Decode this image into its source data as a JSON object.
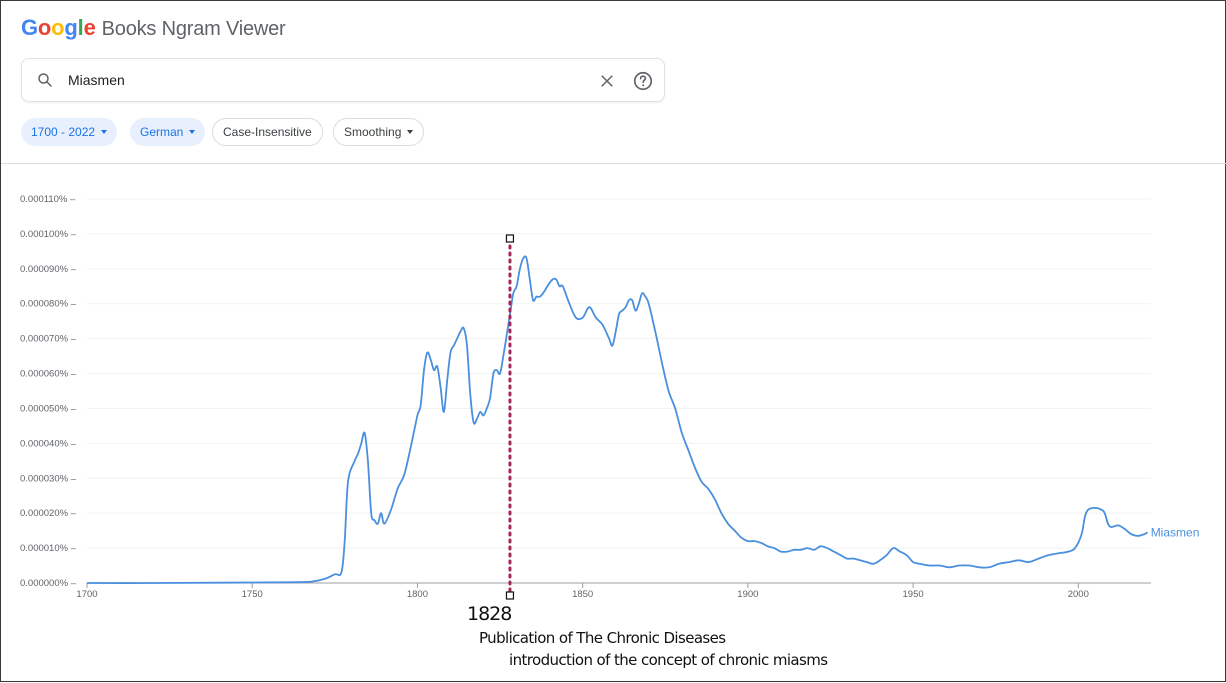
{
  "app": {
    "logo_letters": [
      "G",
      "o",
      "o",
      "g",
      "l",
      "e"
    ],
    "title": "Books Ngram Viewer"
  },
  "search": {
    "value": "Miasmen",
    "icon": "search-icon",
    "clear_icon": "close-icon",
    "help_icon": "help-icon"
  },
  "filters": {
    "year_range": "1700 - 2022",
    "corpus": "German",
    "case": "Case-Insensitive",
    "smoothing": "Smoothing"
  },
  "colors": {
    "series": "#4a8fde",
    "marker_line": "#a0285a",
    "active_chip_bg": "#e8f0fe",
    "active_chip_text": "#1a73e8"
  },
  "chart_data": {
    "type": "line",
    "xlim": [
      1700,
      2022
    ],
    "ylim": [
      0,
      1.1e-06
    ],
    "x_ticks": [
      {
        "value": 1700,
        "label": "1700"
      },
      {
        "value": 1750,
        "label": "1750"
      },
      {
        "value": 1800,
        "label": "1800"
      },
      {
        "value": 1850,
        "label": "1850"
      },
      {
        "value": 1900,
        "label": "1900"
      },
      {
        "value": 1950,
        "label": "1950"
      },
      {
        "value": 2000,
        "label": "2000"
      }
    ],
    "y_ticks": [
      {
        "value": 0,
        "label": "0.000000%"
      },
      {
        "value": 1e-07,
        "label": "0.000010%"
      },
      {
        "value": 2e-07,
        "label": "0.000020%"
      },
      {
        "value": 3e-07,
        "label": "0.000030%"
      },
      {
        "value": 4e-07,
        "label": "0.000040%"
      },
      {
        "value": 5e-07,
        "label": "0.000050%"
      },
      {
        "value": 6e-07,
        "label": "0.000060%"
      },
      {
        "value": 7e-07,
        "label": "0.000070%"
      },
      {
        "value": 8e-07,
        "label": "0.000080%"
      },
      {
        "value": 9e-07,
        "label": "0.000090%"
      },
      {
        "value": 1e-06,
        "label": "0.000100%"
      },
      {
        "value": 1.1e-06,
        "label": "0.000110%"
      }
    ],
    "series": [
      {
        "name": "Miasmen",
        "points": [
          [
            1700,
            0
          ],
          [
            1720,
            0
          ],
          [
            1740,
            1e-09
          ],
          [
            1760,
            2e-09
          ],
          [
            1768,
            4e-09
          ],
          [
            1772,
            1.2e-08
          ],
          [
            1775,
            2.5e-08
          ],
          [
            1777,
            3e-08
          ],
          [
            1778,
            1.2e-07
          ],
          [
            1779,
            2.9e-07
          ],
          [
            1781,
            3.5e-07
          ],
          [
            1782,
            3.7e-07
          ],
          [
            1783,
            4e-07
          ],
          [
            1784,
            4.3e-07
          ],
          [
            1785,
            3.5e-07
          ],
          [
            1786,
            2e-07
          ],
          [
            1787,
            1.8e-07
          ],
          [
            1788,
            1.7e-07
          ],
          [
            1789,
            2e-07
          ],
          [
            1790,
            1.7e-07
          ],
          [
            1792,
            2.1e-07
          ],
          [
            1794,
            2.7e-07
          ],
          [
            1796,
            3.1e-07
          ],
          [
            1798,
            3.9e-07
          ],
          [
            1800,
            4.8e-07
          ],
          [
            1801,
            5.1e-07
          ],
          [
            1802,
            6.1e-07
          ],
          [
            1803,
            6.6e-07
          ],
          [
            1804,
            6.4e-07
          ],
          [
            1805,
            6.1e-07
          ],
          [
            1806,
            6.2e-07
          ],
          [
            1807,
            5.6e-07
          ],
          [
            1808,
            4.9e-07
          ],
          [
            1809,
            5.8e-07
          ],
          [
            1810,
            6.6e-07
          ],
          [
            1811,
            6.8e-07
          ],
          [
            1812,
            7e-07
          ],
          [
            1813,
            7.2e-07
          ],
          [
            1814,
            7.3e-07
          ],
          [
            1815,
            6.8e-07
          ],
          [
            1816,
            5.4e-07
          ],
          [
            1817,
            4.6e-07
          ],
          [
            1818,
            4.7e-07
          ],
          [
            1819,
            4.9e-07
          ],
          [
            1820,
            4.8e-07
          ],
          [
            1821,
            5e-07
          ],
          [
            1822,
            5.3e-07
          ],
          [
            1823,
            6e-07
          ],
          [
            1824,
            6.1e-07
          ],
          [
            1825,
            6e-07
          ],
          [
            1826,
            6.5e-07
          ],
          [
            1827,
            7.1e-07
          ],
          [
            1828,
            7.7e-07
          ],
          [
            1829,
            8.3e-07
          ],
          [
            1830,
            8.5e-07
          ],
          [
            1831,
            9e-07
          ],
          [
            1832,
            9.3e-07
          ],
          [
            1833,
            9.3e-07
          ],
          [
            1834,
            8.7e-07
          ],
          [
            1835,
            8.1e-07
          ],
          [
            1836,
            8.2e-07
          ],
          [
            1837,
            8.2e-07
          ],
          [
            1838,
            8.3e-07
          ],
          [
            1840,
            8.6e-07
          ],
          [
            1841,
            8.7e-07
          ],
          [
            1842,
            8.7e-07
          ],
          [
            1843,
            8.5e-07
          ],
          [
            1844,
            8.5e-07
          ],
          [
            1846,
            8e-07
          ],
          [
            1848,
            7.6e-07
          ],
          [
            1850,
            7.6e-07
          ],
          [
            1852,
            7.9e-07
          ],
          [
            1854,
            7.6e-07
          ],
          [
            1856,
            7.4e-07
          ],
          [
            1858,
            7e-07
          ],
          [
            1859,
            6.8e-07
          ],
          [
            1860,
            7.2e-07
          ],
          [
            1861,
            7.7e-07
          ],
          [
            1862,
            7.8e-07
          ],
          [
            1863,
            7.9e-07
          ],
          [
            1864,
            8.1e-07
          ],
          [
            1865,
            8.1e-07
          ],
          [
            1866,
            7.8e-07
          ],
          [
            1867,
            8e-07
          ],
          [
            1868,
            8.3e-07
          ],
          [
            1869,
            8.2e-07
          ],
          [
            1870,
            8e-07
          ],
          [
            1872,
            7.2e-07
          ],
          [
            1874,
            6.3e-07
          ],
          [
            1876,
            5.5e-07
          ],
          [
            1878,
            5e-07
          ],
          [
            1880,
            4.3e-07
          ],
          [
            1882,
            3.8e-07
          ],
          [
            1884,
            3.3e-07
          ],
          [
            1886,
            2.9e-07
          ],
          [
            1888,
            2.7e-07
          ],
          [
            1890,
            2.4e-07
          ],
          [
            1892,
            2e-07
          ],
          [
            1894,
            1.7e-07
          ],
          [
            1896,
            1.5e-07
          ],
          [
            1898,
            1.3e-07
          ],
          [
            1900,
            1.2e-07
          ],
          [
            1902,
            1.2e-07
          ],
          [
            1904,
            1.15e-07
          ],
          [
            1906,
            1.05e-07
          ],
          [
            1908,
            1e-07
          ],
          [
            1910,
            9e-08
          ],
          [
            1912,
            9e-08
          ],
          [
            1914,
            9.5e-08
          ],
          [
            1916,
            9.5e-08
          ],
          [
            1918,
            1e-07
          ],
          [
            1920,
            9.5e-08
          ],
          [
            1922,
            1.05e-07
          ],
          [
            1924,
            1e-07
          ],
          [
            1926,
            9e-08
          ],
          [
            1928,
            8e-08
          ],
          [
            1930,
            7e-08
          ],
          [
            1932,
            7e-08
          ],
          [
            1934,
            6.5e-08
          ],
          [
            1936,
            6e-08
          ],
          [
            1938,
            5.5e-08
          ],
          [
            1940,
            6.5e-08
          ],
          [
            1942,
            8e-08
          ],
          [
            1944,
            1e-07
          ],
          [
            1946,
            9e-08
          ],
          [
            1948,
            8e-08
          ],
          [
            1950,
            6e-08
          ],
          [
            1952,
            5.5e-08
          ],
          [
            1955,
            5e-08
          ],
          [
            1958,
            5e-08
          ],
          [
            1961,
            4.5e-08
          ],
          [
            1964,
            5e-08
          ],
          [
            1967,
            5e-08
          ],
          [
            1970,
            4.5e-08
          ],
          [
            1973,
            4.5e-08
          ],
          [
            1976,
            5.5e-08
          ],
          [
            1979,
            6e-08
          ],
          [
            1982,
            6.5e-08
          ],
          [
            1985,
            6e-08
          ],
          [
            1988,
            7e-08
          ],
          [
            1991,
            8e-08
          ],
          [
            1994,
            8.5e-08
          ],
          [
            1997,
            9e-08
          ],
          [
            1999,
            1e-07
          ],
          [
            2001,
            1.4e-07
          ],
          [
            2002,
            1.9e-07
          ],
          [
            2003,
            2.1e-07
          ],
          [
            2005,
            2.15e-07
          ],
          [
            2007,
            2.1e-07
          ],
          [
            2008,
            2e-07
          ],
          [
            2009,
            1.7e-07
          ],
          [
            2010,
            1.6e-07
          ],
          [
            2012,
            1.65e-07
          ],
          [
            2014,
            1.55e-07
          ],
          [
            2016,
            1.4e-07
          ],
          [
            2018,
            1.35e-07
          ],
          [
            2020,
            1.4e-07
          ],
          [
            2021,
            1.45e-07
          ]
        ]
      }
    ],
    "marker": {
      "x": 1828
    },
    "annotations": {
      "year": "1828",
      "line1": "Publication of The Chronic Diseases",
      "line2": "introduction of the concept of chronic miasms"
    }
  }
}
